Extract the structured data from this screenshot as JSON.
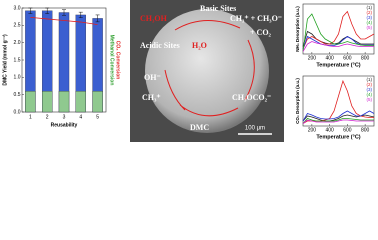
{
  "chart_data": [
    {
      "type": "bar",
      "xlabel": "Reusability",
      "ylabel": "DMC Yield (mmol g⁻¹)",
      "y2labels": [
        "Methanol Conversion",
        "CO₂ Conversion"
      ],
      "y2label_colors": [
        "#2a9d2a",
        "#e02020"
      ],
      "categories": [
        "1",
        "2",
        "3",
        "4",
        "5"
      ],
      "ylim": [
        0,
        3
      ],
      "yticks": [
        {
          "value": 0,
          "label": "0.0"
        },
        {
          "value": 0.5,
          "label": "0.5"
        },
        {
          "value": 1,
          "label": "1.0"
        },
        {
          "value": 1.5,
          "label": "1.5"
        },
        {
          "value": 2,
          "label": "2.0"
        },
        {
          "value": 2.5,
          "label": "2.5"
        },
        {
          "value": 3,
          "label": "3.0"
        }
      ],
      "y2lim": [
        0,
        10
      ],
      "series": [
        {
          "type": "bar",
          "color": "#3b5fd0",
          "values": [
            2.92,
            2.92,
            2.87,
            2.8,
            2.7
          ],
          "errors": [
            0.08,
            0.08,
            0.08,
            0.08,
            0.1
          ]
        },
        {
          "type": "bar",
          "axis": "y2",
          "color": "#8fc98f",
          "values": [
            2,
            2,
            2,
            2,
            2
          ]
        },
        {
          "type": "line",
          "axis": "y2",
          "color": "#e02020",
          "values": [
            9.1,
            8.95,
            8.8,
            8.65,
            8.4
          ]
        }
      ]
    },
    {
      "type": "line",
      "xlabel": "Temperature (°C)",
      "ylabel": "NH₃ Desorption (a.u.)",
      "x": [
        100,
        150,
        200,
        250,
        300,
        350,
        400,
        450,
        500,
        550,
        600,
        650,
        700,
        750,
        800,
        850,
        900
      ],
      "xlim": [
        100,
        900
      ],
      "xticks": [
        200,
        400,
        600,
        800
      ],
      "ylim": [
        0,
        1
      ],
      "series": [
        {
          "name": "(1)",
          "color": "#222222",
          "values": [
            0.15,
            0.45,
            0.4,
            0.3,
            0.25,
            0.22,
            0.2,
            0.2,
            0.22,
            0.3,
            0.35,
            0.3,
            0.25,
            0.2,
            0.2,
            0.2,
            0.2
          ]
        },
        {
          "name": "(2)",
          "color": "#e02020",
          "values": [
            0.1,
            0.3,
            0.35,
            0.3,
            0.25,
            0.2,
            0.2,
            0.25,
            0.4,
            0.75,
            0.85,
            0.6,
            0.4,
            0.3,
            0.3,
            0.35,
            0.4
          ]
        },
        {
          "name": "(3)",
          "color": "#2030d0",
          "values": [
            0.1,
            0.35,
            0.3,
            0.25,
            0.2,
            0.18,
            0.17,
            0.17,
            0.2,
            0.28,
            0.35,
            0.3,
            0.22,
            0.18,
            0.18,
            0.18,
            0.18
          ]
        },
        {
          "name": "(4)",
          "color": "#20a020",
          "values": [
            0.05,
            0.7,
            0.8,
            0.6,
            0.4,
            0.3,
            0.25,
            0.2,
            0.2,
            0.22,
            0.25,
            0.22,
            0.2,
            0.18,
            0.17,
            0.17,
            0.17
          ]
        },
        {
          "name": "(5)",
          "color": "#d020d0",
          "values": [
            0.05,
            0.2,
            0.25,
            0.22,
            0.2,
            0.18,
            0.16,
            0.15,
            0.15,
            0.18,
            0.2,
            0.18,
            0.16,
            0.15,
            0.15,
            0.15,
            0.15
          ]
        }
      ]
    },
    {
      "type": "line",
      "xlabel": "Temperature (°C)",
      "ylabel": "CO₂ Desorption (a.u.)",
      "x": [
        100,
        150,
        200,
        250,
        300,
        350,
        400,
        450,
        500,
        550,
        600,
        650,
        700,
        750,
        800,
        850,
        900
      ],
      "xlim": [
        100,
        900
      ],
      "xticks": [
        200,
        400,
        600,
        800
      ],
      "ylim": [
        0,
        1
      ],
      "series": [
        {
          "name": "(1)",
          "color": "#222222",
          "values": [
            0.1,
            0.2,
            0.18,
            0.15,
            0.12,
            0.1,
            0.1,
            0.12,
            0.15,
            0.2,
            0.22,
            0.2,
            0.18,
            0.2,
            0.22,
            0.2,
            0.18
          ]
        },
        {
          "name": "(2)",
          "color": "#e02020",
          "values": [
            0.05,
            0.1,
            0.1,
            0.1,
            0.1,
            0.12,
            0.15,
            0.3,
            0.6,
            0.9,
            0.7,
            0.4,
            0.25,
            0.2,
            0.18,
            0.17,
            0.17
          ]
        },
        {
          "name": "(3)",
          "color": "#2030d0",
          "values": [
            0.1,
            0.25,
            0.22,
            0.18,
            0.15,
            0.14,
            0.14,
            0.15,
            0.18,
            0.25,
            0.3,
            0.25,
            0.2,
            0.2,
            0.25,
            0.3,
            0.25
          ]
        },
        {
          "name": "(4)",
          "color": "#20a020",
          "values": [
            0.05,
            0.15,
            0.12,
            0.1,
            0.1,
            0.1,
            0.1,
            0.1,
            0.12,
            0.15,
            0.15,
            0.14,
            0.13,
            0.12,
            0.12,
            0.12,
            0.12
          ]
        },
        {
          "name": "(5)",
          "color": "#d020d0",
          "values": [
            0.05,
            0.12,
            0.1,
            0.08,
            0.08,
            0.08,
            0.08,
            0.08,
            0.1,
            0.12,
            0.12,
            0.11,
            0.1,
            0.1,
            0.1,
            0.1,
            0.1
          ]
        }
      ]
    }
  ],
  "diagram": {
    "labels": [
      "Basic Sites",
      "CH₃OH",
      "CH₃⁺ + CH₃O⁻",
      "+ CO₂",
      "H₂O",
      "Acidic Sites",
      "OH⁻",
      "CH₃⁺",
      "CH₃OCO₂⁻",
      "DMC"
    ],
    "scale_bar": "100 μm"
  }
}
